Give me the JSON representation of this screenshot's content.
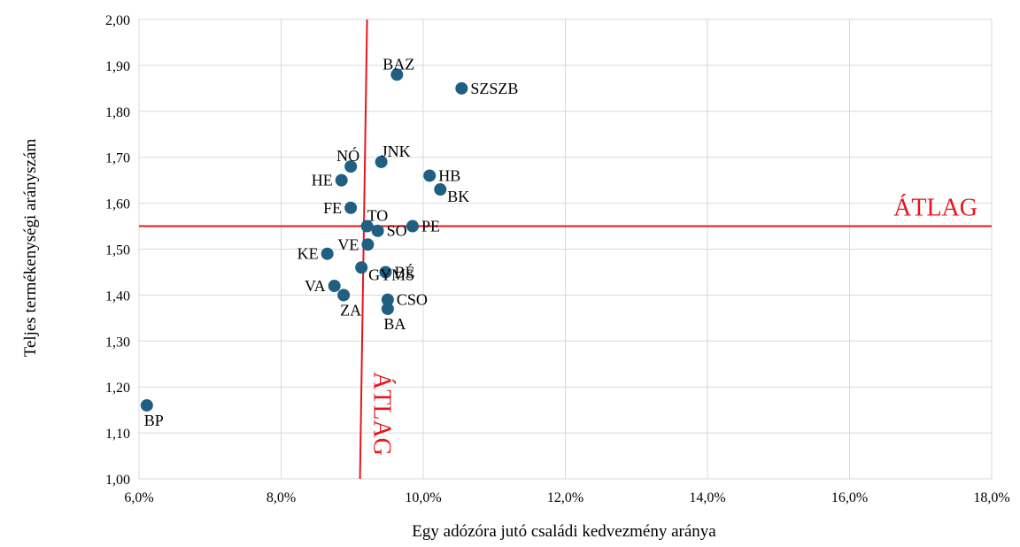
{
  "chart_data": {
    "type": "scatter",
    "xlabel": "Egy adózóra jutó családi kedvezmény aránya",
    "ylabel": "Teljes termékenységi arányszám",
    "xlim": [
      0.06,
      0.18
    ],
    "ylim": [
      1.0,
      2.0
    ],
    "x_ticks": [
      {
        "value": 0.06,
        "label": "6,0%"
      },
      {
        "value": 0.08,
        "label": "8,0%"
      },
      {
        "value": 0.1,
        "label": "10,0%"
      },
      {
        "value": 0.12,
        "label": "12,0%"
      },
      {
        "value": 0.14,
        "label": "14,0%"
      },
      {
        "value": 0.16,
        "label": "16,0%"
      },
      {
        "value": 0.18,
        "label": "18,0%"
      }
    ],
    "y_ticks": [
      {
        "value": 1.0,
        "label": "1,00"
      },
      {
        "value": 1.1,
        "label": "1,10"
      },
      {
        "value": 1.2,
        "label": "1,20"
      },
      {
        "value": 1.3,
        "label": "1,30"
      },
      {
        "value": 1.4,
        "label": "1,40"
      },
      {
        "value": 1.5,
        "label": "1,50"
      },
      {
        "value": 1.6,
        "label": "1,60"
      },
      {
        "value": 1.7,
        "label": "1,70"
      },
      {
        "value": 1.8,
        "label": "1,80"
      },
      {
        "value": 1.9,
        "label": "1,90"
      },
      {
        "value": 2.0,
        "label": "2,00"
      }
    ],
    "grid": true,
    "point_color": "#1f5f82",
    "average_color": "#e8161b",
    "points": [
      {
        "label": "BAZ",
        "x": 0.0963,
        "y": 1.88,
        "label_pos": "above-left"
      },
      {
        "label": "SZSZB",
        "x": 0.1054,
        "y": 1.85,
        "label_pos": "right"
      },
      {
        "label": "JNK",
        "x": 0.0941,
        "y": 1.69,
        "label_pos": "above-right"
      },
      {
        "label": "NÓ",
        "x": 0.0898,
        "y": 1.68,
        "label_pos": "above-left"
      },
      {
        "label": "HB",
        "x": 0.1009,
        "y": 1.66,
        "label_pos": "right"
      },
      {
        "label": "HE",
        "x": 0.0885,
        "y": 1.65,
        "label_pos": "left"
      },
      {
        "label": "BK",
        "x": 0.1024,
        "y": 1.63,
        "label_pos": "below-right"
      },
      {
        "label": "FE",
        "x": 0.0898,
        "y": 1.59,
        "label_pos": "left"
      },
      {
        "label": "TO",
        "x": 0.0921,
        "y": 1.55,
        "label_pos": "above-right"
      },
      {
        "label": "PE",
        "x": 0.0985,
        "y": 1.55,
        "label_pos": "right"
      },
      {
        "label": "SO",
        "x": 0.0936,
        "y": 1.54,
        "label_pos": "right"
      },
      {
        "label": "VE",
        "x": 0.0922,
        "y": 1.51,
        "label_pos": "left"
      },
      {
        "label": "KE",
        "x": 0.0865,
        "y": 1.49,
        "label_pos": "left"
      },
      {
        "label": "GYMS",
        "x": 0.0913,
        "y": 1.46,
        "label_pos": "below-right"
      },
      {
        "label": "BÉ",
        "x": 0.0947,
        "y": 1.45,
        "label_pos": "right"
      },
      {
        "label": "VA",
        "x": 0.0875,
        "y": 1.42,
        "label_pos": "left"
      },
      {
        "label": "ZA",
        "x": 0.0888,
        "y": 1.4,
        "label_pos": "below"
      },
      {
        "label": "CSO",
        "x": 0.095,
        "y": 1.39,
        "label_pos": "right"
      },
      {
        "label": "BA",
        "x": 0.095,
        "y": 1.37,
        "label_pos": "below"
      },
      {
        "label": "BP",
        "x": 0.0611,
        "y": 1.16,
        "label_pos": "below"
      }
    ],
    "average_lines": {
      "x": {
        "value": 0.0916,
        "label": "ÁTLAG"
      },
      "y": {
        "value": 1.55,
        "label": "ÁTLAG"
      }
    }
  }
}
